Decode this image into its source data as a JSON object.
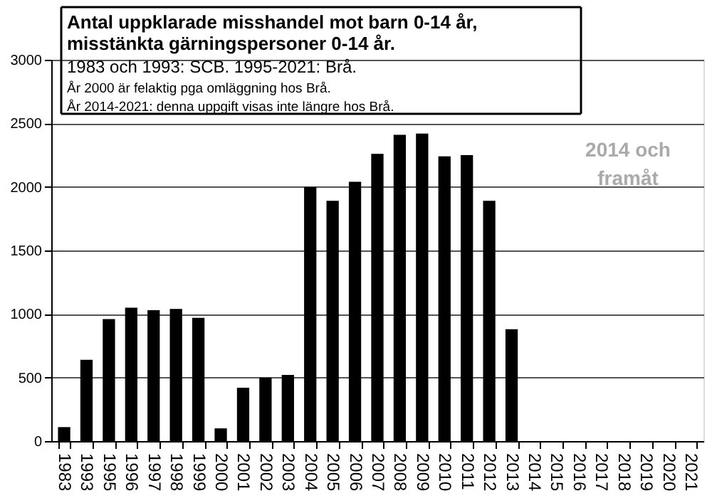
{
  "chart_data": {
    "type": "bar",
    "title": "Antal uppklarade misshandel mot barn 0-14 år, misstänkta gärningspersoner 0-14 år.",
    "subtitle": "1983 och 1993: SCB. 1995-2021: Brå.",
    "annotations": [
      "År 2000 är felaktig pga omläggning hos Brå.",
      "År 2014-2021: denna uppgift visas inte längre hos Brå.",
      "2014 och framåt"
    ],
    "categories": [
      "1983",
      "1993",
      "1995",
      "1996",
      "1997",
      "1998",
      "1999",
      "2000",
      "2001",
      "2002",
      "2003",
      "2004",
      "2005",
      "2006",
      "2007",
      "2008",
      "2009",
      "2010",
      "2011",
      "2012",
      "2013",
      "2014",
      "2015",
      "2016",
      "2017",
      "2018",
      "2019",
      "2020",
      "2021"
    ],
    "values": [
      110,
      640,
      960,
      1050,
      1030,
      1040,
      970,
      100,
      420,
      500,
      520,
      2000,
      1890,
      2040,
      2260,
      2410,
      2420,
      2240,
      2250,
      1890,
      880,
      null,
      null,
      null,
      null,
      null,
      null,
      null,
      null
    ],
    "color": "#000000",
    "ylim": [
      0,
      3000
    ],
    "yticks": [
      0,
      500,
      1000,
      1500,
      2000,
      2500,
      3000
    ],
    "grid": "y"
  }
}
